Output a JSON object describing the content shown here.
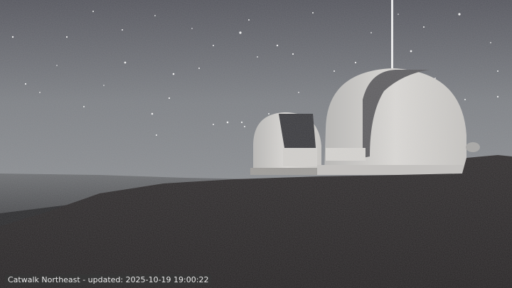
{
  "webcam": {
    "caption": "Catwalk Northeast - updated: 2025-10-19 19:00:22"
  },
  "scene": {
    "sky_color_top": "#55565e",
    "sky_color_horizon": "#8c8f93",
    "ground_color": "#2b2829",
    "dome_color": "#d8d6d3",
    "laser_color": "#f4f4f4"
  }
}
